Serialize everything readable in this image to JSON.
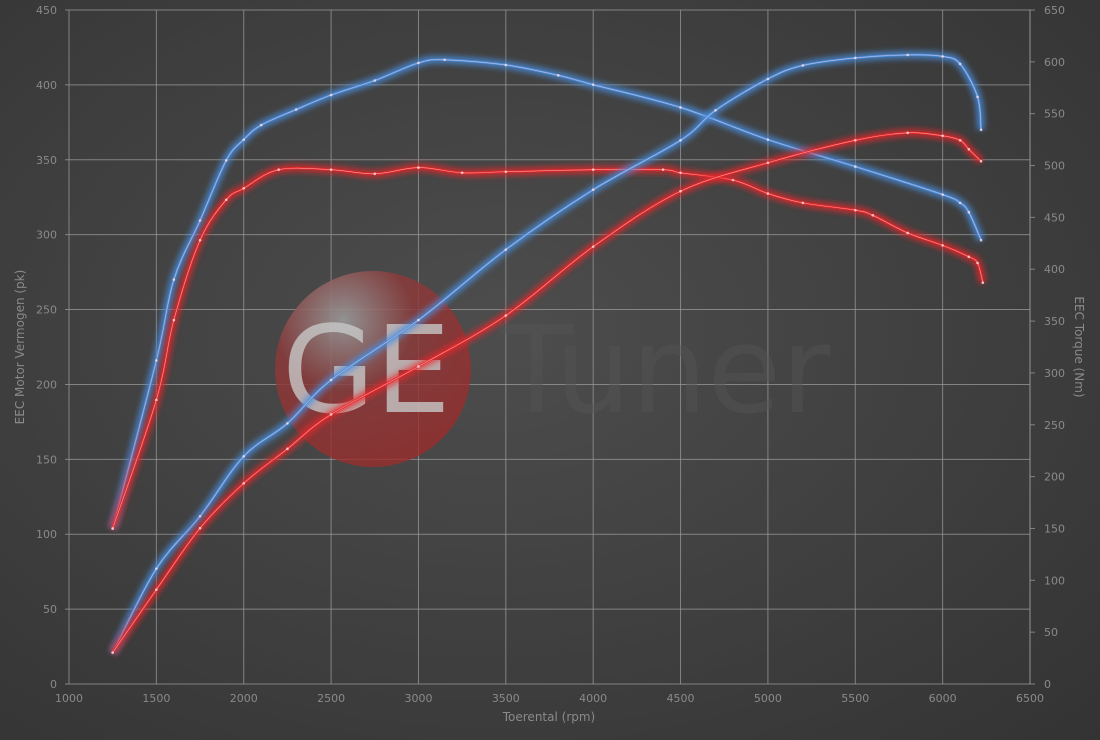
{
  "chart_data": {
    "type": "line",
    "title": "",
    "xlabel": "Toerental (rpm)",
    "ylabel_left": "EEC Motor Vermogen (pk)",
    "ylabel_right": "EEC Torque (Nm)",
    "xlim": [
      1000,
      6500
    ],
    "ylim_left": [
      0,
      450
    ],
    "ylim_right": [
      0,
      650
    ],
    "x_ticks": [
      "1000",
      "1500",
      "2000",
      "2500",
      "3000",
      "3500",
      "4000",
      "4500",
      "5000",
      "5500",
      "6000",
      "6500"
    ],
    "y_left_ticks": [
      "0",
      "50",
      "100",
      "150",
      "200",
      "250",
      "300",
      "350",
      "400",
      "450"
    ],
    "y_right_ticks": [
      "0",
      "50",
      "100",
      "150",
      "200",
      "250",
      "300",
      "350",
      "400",
      "450",
      "500",
      "550",
      "600",
      "650"
    ],
    "grid": true,
    "legend": "none",
    "watermark_logo_text": "GE Tuner",
    "colors": {
      "tuned": "#4a90e2",
      "stock": "#e8282a",
      "logo": "#b03030"
    },
    "series": [
      {
        "axis": "right",
        "color": "tuned",
        "x": [
          1250,
          1500,
          1600,
          1750,
          1900,
          2000,
          2100,
          2300,
          2500,
          2750,
          3000,
          3150,
          3500,
          3800,
          4000,
          4500,
          5000,
          5500,
          6000,
          6100,
          6150,
          6220
        ],
        "y": [
          150,
          312,
          390,
          447,
          505,
          525,
          539,
          554,
          568,
          582,
          599,
          602,
          597,
          587,
          578,
          556,
          525,
          499,
          472,
          464,
          455,
          428
        ]
      },
      {
        "axis": "right",
        "color": "stock",
        "x": [
          1250,
          1500,
          1600,
          1750,
          1900,
          2000,
          2200,
          2500,
          2750,
          3000,
          3250,
          3500,
          4000,
          4400,
          4500,
          4800,
          5000,
          5200,
          5500,
          5600,
          5800,
          6000,
          6150,
          6200,
          6230
        ],
        "y": [
          150,
          274,
          351,
          428,
          467,
          478,
          496,
          496,
          492,
          498,
          493,
          494,
          496,
          496,
          493,
          486,
          473,
          464,
          457,
          452,
          435,
          423,
          412,
          406,
          387
        ]
      },
      {
        "axis": "left",
        "color": "tuned",
        "x": [
          1250,
          1500,
          1750,
          2000,
          2250,
          2500,
          3000,
          3500,
          4000,
          4500,
          4700,
          5000,
          5200,
          5500,
          5800,
          6000,
          6100,
          6200,
          6220
        ],
        "y": [
          21,
          77,
          112,
          152,
          174,
          203,
          243,
          290,
          330,
          363,
          383,
          404,
          413,
          418,
          420,
          419,
          414,
          392,
          370
        ]
      },
      {
        "axis": "left",
        "color": "stock",
        "x": [
          1250,
          1500,
          1750,
          2000,
          2250,
          2500,
          3000,
          3500,
          4000,
          4500,
          5000,
          5500,
          5800,
          6000,
          6100,
          6150,
          6220
        ],
        "y": [
          21,
          63,
          104,
          134,
          157,
          180,
          212,
          246,
          292,
          329,
          348,
          363,
          368,
          366,
          363,
          357,
          349
        ]
      }
    ]
  }
}
